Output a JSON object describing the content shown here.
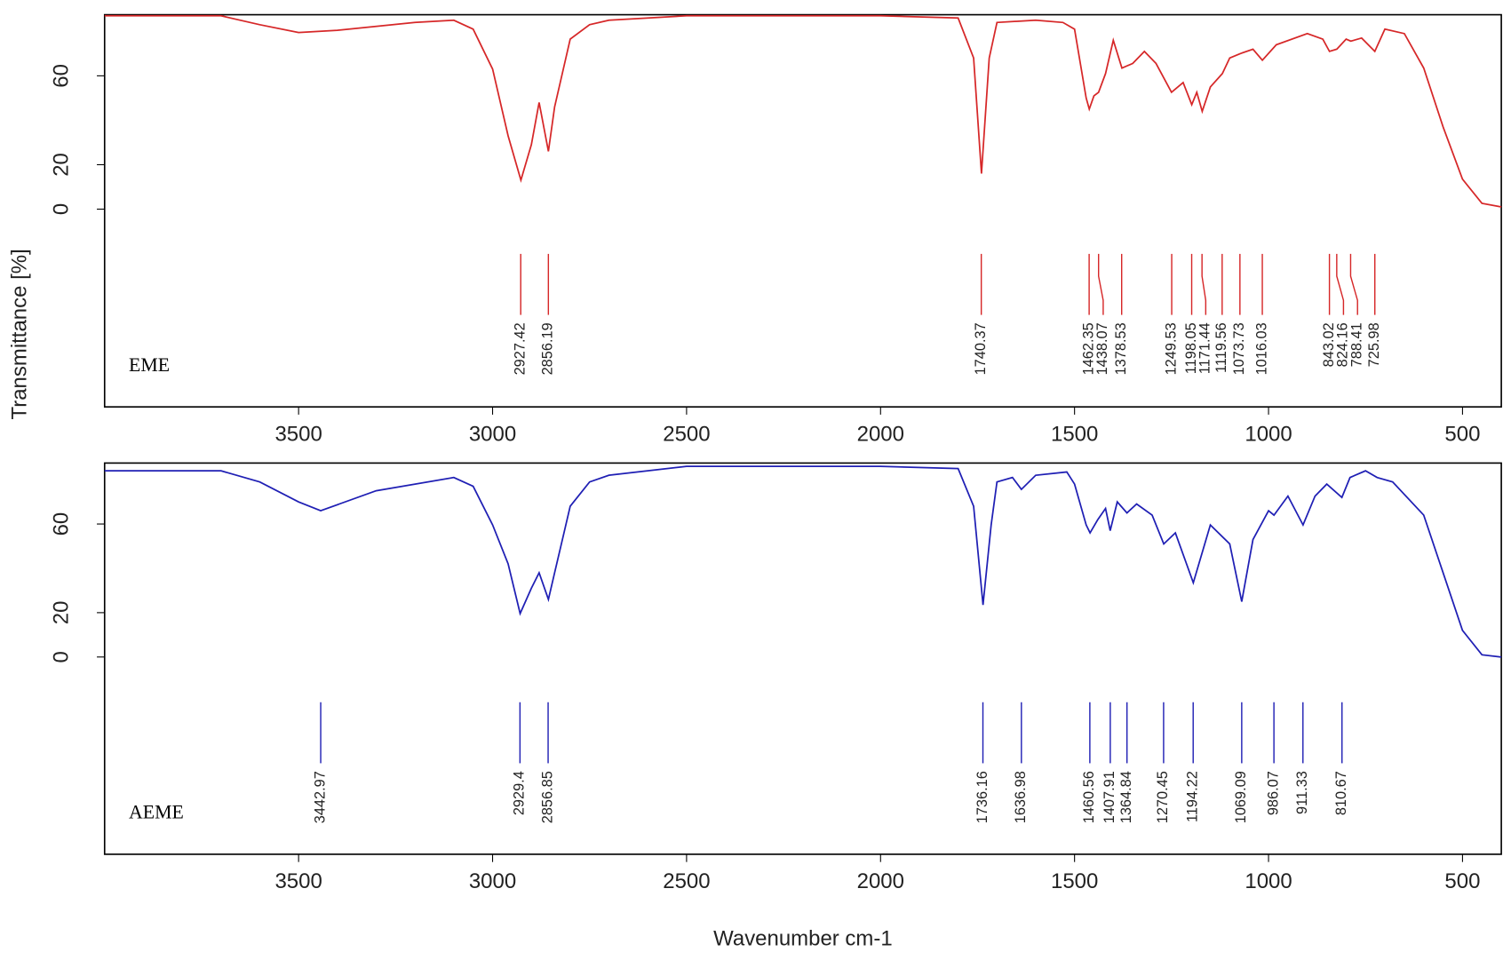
{
  "chart_data": [
    {
      "type": "line",
      "label": "EME",
      "color": "#d62728",
      "ylabel": "Transmittance [%]",
      "x": [
        4000,
        3700,
        3600,
        3500,
        3400,
        3200,
        3100,
        3050,
        3000,
        2960,
        2927,
        2900,
        2880,
        2856,
        2840,
        2800,
        2750,
        2700,
        2500,
        2000,
        1800,
        1760,
        1740,
        1720,
        1700,
        1600,
        1530,
        1500,
        1470,
        1462,
        1450,
        1438,
        1420,
        1400,
        1378,
        1350,
        1320,
        1290,
        1250,
        1220,
        1198,
        1185,
        1171,
        1150,
        1119,
        1100,
        1073,
        1040,
        1016,
        980,
        900,
        860,
        843,
        824,
        800,
        788,
        760,
        726,
        700,
        650,
        600,
        550,
        500,
        450,
        400
      ],
      "values": [
        87,
        87,
        83,
        79.5,
        80.5,
        84,
        85,
        81,
        63,
        33,
        13,
        29,
        48,
        26,
        46,
        76.5,
        83,
        85,
        87,
        87,
        86,
        68,
        16,
        68,
        84,
        85,
        84,
        81,
        50,
        45,
        51,
        52.6,
        61,
        76,
        63.5,
        65.6,
        71,
        65.6,
        52.6,
        57,
        47,
        52.6,
        44,
        55,
        61,
        68,
        70,
        72,
        67,
        74,
        79,
        76.5,
        71,
        72,
        76.5,
        75.6,
        77,
        71,
        81,
        79,
        63.5,
        37,
        13.5,
        2.6,
        1
      ],
      "peaks": [
        2927.42,
        2856.19,
        1740.37,
        1462.35,
        1438.07,
        1378.53,
        1249.53,
        1198.05,
        1171.44,
        1119.56,
        1073.73,
        1016.03,
        843.02,
        824.16,
        788.41,
        725.98
      ],
      "xlim": [
        4000,
        400
      ],
      "xticks": [
        3500,
        3000,
        2500,
        2000,
        1500,
        1000,
        500
      ],
      "ylim": [
        -89,
        87.5
      ],
      "yticks": [
        0,
        20,
        60
      ]
    },
    {
      "type": "line",
      "label": "AEME",
      "color": "#1f1fb4",
      "xlabel": "Wavenumber cm-1",
      "x": [
        4000,
        3700,
        3600,
        3500,
        3443,
        3300,
        3100,
        3050,
        3000,
        2960,
        2929,
        2900,
        2880,
        2856,
        2840,
        2800,
        2750,
        2700,
        2500,
        2000,
        1800,
        1760,
        1736,
        1715,
        1700,
        1660,
        1637,
        1600,
        1520,
        1500,
        1470,
        1460,
        1440,
        1420,
        1408,
        1390,
        1365,
        1340,
        1300,
        1270,
        1240,
        1194,
        1150,
        1100,
        1069,
        1040,
        1000,
        986,
        950,
        911,
        880,
        850,
        811,
        790,
        750,
        720,
        680,
        600,
        550,
        500,
        450,
        400
      ],
      "values": [
        84,
        84,
        79,
        70,
        66,
        75,
        81,
        77,
        59.6,
        42,
        19.6,
        31,
        38,
        26,
        38,
        68,
        79,
        82,
        86,
        86,
        85,
        68,
        23.5,
        59.6,
        79,
        81,
        75.6,
        82,
        83.5,
        78,
        59.6,
        56,
        62,
        67,
        57,
        70,
        65,
        69,
        64,
        51,
        56,
        33.5,
        59.6,
        51,
        25,
        53,
        66,
        64,
        72.6,
        59.6,
        72.6,
        78,
        72,
        81,
        84,
        81,
        79,
        64,
        38,
        12,
        1,
        0
      ],
      "peaks": [
        3442.97,
        2929.4,
        2856.85,
        1736.16,
        1636.98,
        1460.56,
        1407.91,
        1364.84,
        1270.45,
        1194.22,
        1069.09,
        986.07,
        911.33,
        810.67
      ],
      "xlim": [
        4000,
        400
      ],
      "xticks": [
        3500,
        3000,
        2500,
        2000,
        1500,
        1000,
        500
      ],
      "ylim": [
        -89,
        87.5
      ],
      "yticks": [
        0,
        20,
        60
      ]
    }
  ]
}
